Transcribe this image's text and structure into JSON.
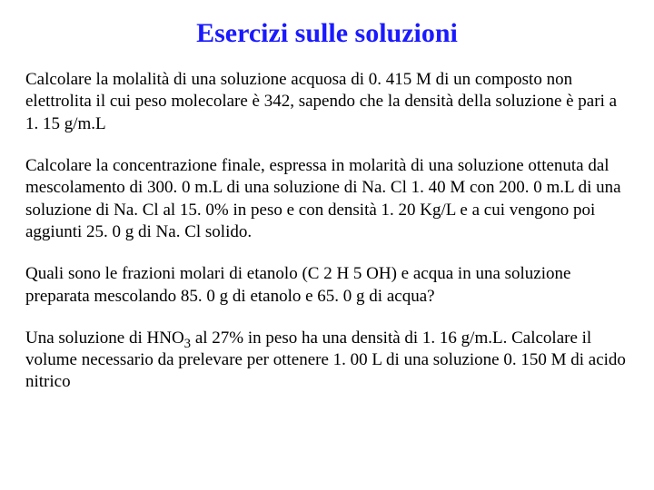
{
  "title": {
    "text": "Esercizi sulle soluzioni",
    "fontsize": 30,
    "color": "#1a1aff"
  },
  "body": {
    "fontsize": 19,
    "color": "#000000",
    "paragraphs": [
      "Calcolare la molalità di una soluzione acquosa di 0. 415 M di un composto non elettrolita il cui peso molecolare è 342, sapendo che la densità della soluzione è pari a 1. 15 g/m.L",
      "Calcolare la concentrazione finale, espressa in molarità di una soluzione ottenuta dal mescolamento di 300. 0 m.L di una soluzione di Na. Cl 1. 40 M con 200. 0 m.L di una soluzione di Na. Cl al 15. 0% in peso e con densità 1. 20 Kg/L e a cui vengono poi aggiunti 25. 0 g di Na. Cl solido.",
      "Quali sono le frazioni molari di etanolo (C 2 H 5 OH) e acqua in una soluzione preparata mescolando 85. 0 g di etanolo e 65. 0 g di acqua?",
      "Una soluzione di HNO{sub3} al 27% in peso ha una densità di 1. 16 g/m.L. Calcolare il volume necessario da prelevare per ottenere 1. 00 L di una soluzione 0. 150 M di acido nitrico"
    ]
  }
}
